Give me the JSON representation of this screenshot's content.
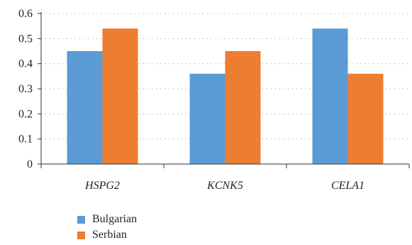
{
  "chart_data": {
    "type": "bar",
    "categories": [
      "HSPG2",
      "KCNK5",
      "CELA1"
    ],
    "series": [
      {
        "name": "Bulgarian",
        "values": [
          0.45,
          0.36,
          0.54
        ],
        "color": "#5b9bd5"
      },
      {
        "name": "Serbian",
        "values": [
          0.54,
          0.45,
          0.36
        ],
        "color": "#ed7d31"
      }
    ],
    "ylim": [
      0,
      0.6
    ],
    "yticks": [
      "0",
      "0.1",
      "0.2",
      "0.3",
      "0.4",
      "0.5",
      "0.6"
    ],
    "grid": true,
    "legend": "bottom-left"
  }
}
